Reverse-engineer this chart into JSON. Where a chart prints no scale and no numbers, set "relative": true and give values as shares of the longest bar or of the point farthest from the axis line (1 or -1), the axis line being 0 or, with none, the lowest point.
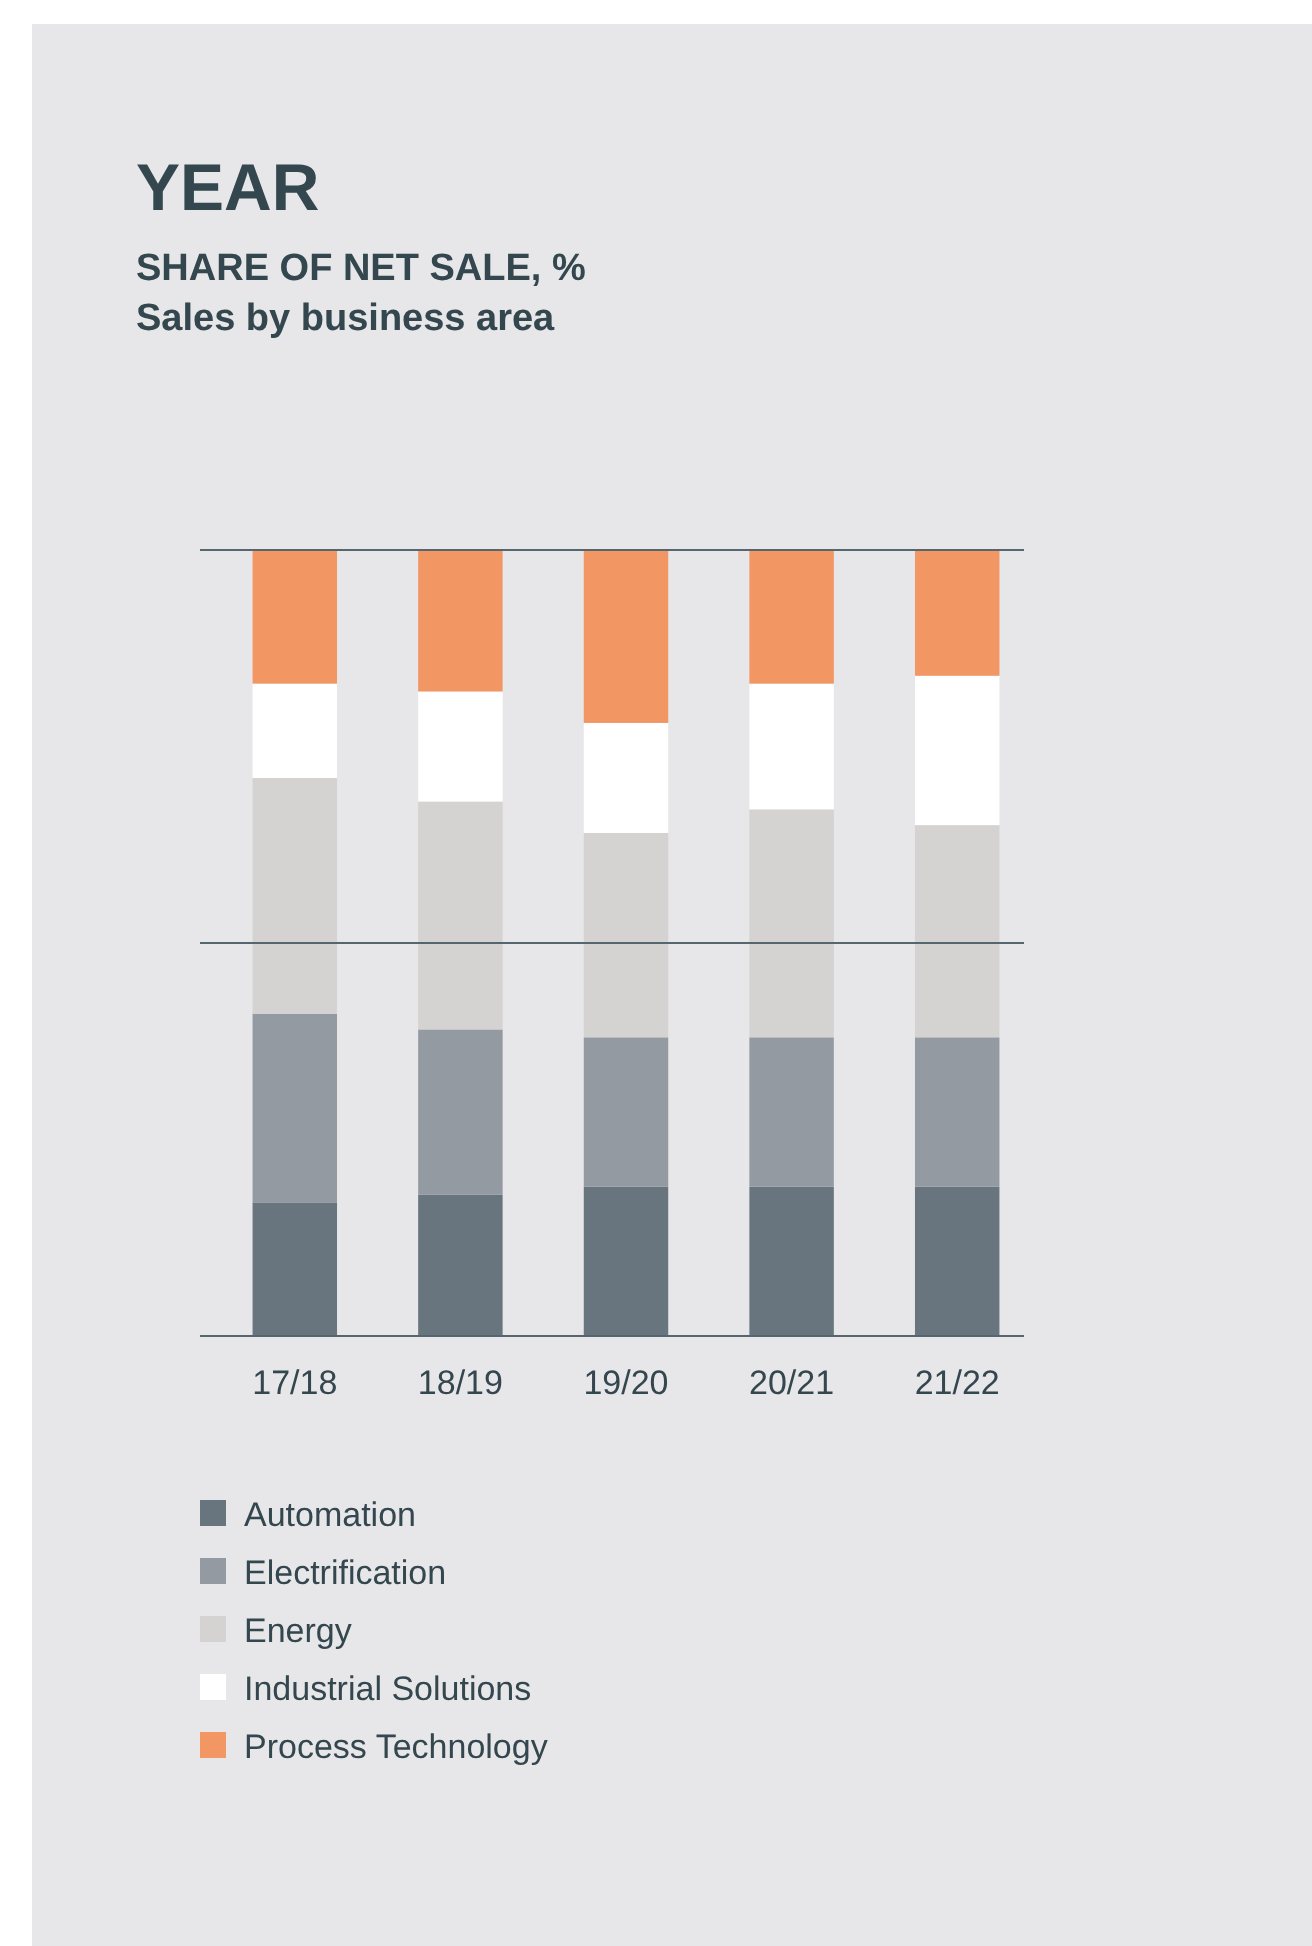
{
  "chart_data": {
    "type": "bar",
    "stacked": true,
    "relative": true,
    "title": "YEAR",
    "subtitle": "SHARE OF NET SALE, %\nSales by business area",
    "categories": [
      "17/18",
      "18/19",
      "19/20",
      "20/21",
      "21/22"
    ],
    "series": [
      {
        "name": "Automation",
        "color": "#68757e",
        "values": [
          0.17,
          0.18,
          0.19,
          0.19,
          0.19
        ]
      },
      {
        "name": "Electrification",
        "color": "#939aa1",
        "values": [
          0.24,
          0.21,
          0.19,
          0.19,
          0.19
        ]
      },
      {
        "name": "Energy",
        "color": "#d4d3d1",
        "values": [
          0.3,
          0.29,
          0.26,
          0.29,
          0.27
        ]
      },
      {
        "name": "Industrial Solutions",
        "color": "#ffffff",
        "values": [
          0.12,
          0.14,
          0.14,
          0.16,
          0.19
        ]
      },
      {
        "name": "Process Technology",
        "color": "#f29664",
        "values": [
          0.17,
          0.18,
          0.22,
          0.17,
          0.16
        ]
      }
    ],
    "ref_lines": [
      {
        "axis": "y",
        "value": 0.5,
        "color": "#56666e"
      },
      {
        "axis": "y",
        "value": 1,
        "color": "#56666e"
      }
    ],
    "legend": "bottom"
  }
}
